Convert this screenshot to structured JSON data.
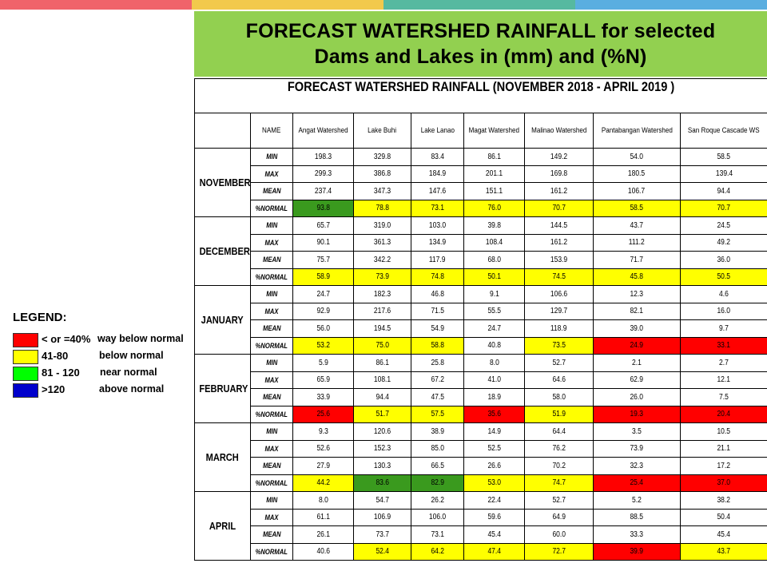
{
  "top_bar_colors": [
    "#f0636a",
    "#f2c94c",
    "#56b9a0",
    "#5aaee0"
  ],
  "banner": {
    "text": "FORECAST WATERSHED RAINFALL  for selected\nDams and Lakes in (mm) and (%N)",
    "color": "#92d050"
  },
  "legend": {
    "title": "LEGEND:",
    "items": [
      {
        "range": "< or =40%",
        "description": "way below normal",
        "color": "#ff0000"
      },
      {
        "range": "41-80",
        "description": "below normal",
        "color": "#ffff00"
      },
      {
        "range": "81 - 120",
        "description": "near normal",
        "color": "#00ff00"
      },
      {
        "range": ">120",
        "description": "above normal",
        "color": "#0000cc"
      }
    ]
  },
  "table": {
    "title": "FORECAST WATERSHED RAINFALL (NOVEMBER 2018 - APRIL 2019 )",
    "name_header": "NAME",
    "columns": [
      "Angat Watershed",
      "Lake Buhi",
      "Lake Lanao",
      "Magat Watershed",
      "Malinao Watershed",
      "Pantabangan Watershed",
      "San Roque Cascade WS"
    ],
    "row_labels": [
      "MIN",
      "MAX",
      "MEAN",
      "%NORMAL"
    ],
    "status_colors": {
      "red": "#ff0000",
      "yellow": "#ffff00",
      "green": "#3a9a1e",
      "white": "#ffffff"
    },
    "months": [
      {
        "name": "NOVEMBER",
        "min": [
          "198.3",
          "329.8",
          "83.4",
          "86.1",
          "149.2",
          "54.0",
          "58.5"
        ],
        "max": [
          "299.3",
          "386.8",
          "184.9",
          "201.1",
          "169.8",
          "180.5",
          "139.4"
        ],
        "mean": [
          "237.4",
          "347.3",
          "147.6",
          "151.1",
          "161.2",
          "106.7",
          "94.4"
        ],
        "normal": [
          "93.8",
          "78.8",
          "73.1",
          "76.0",
          "70.7",
          "58.5",
          "70.7"
        ],
        "normal_colors": [
          "green",
          "yellow",
          "yellow",
          "yellow",
          "yellow",
          "yellow",
          "yellow"
        ]
      },
      {
        "name": "DECEMBER",
        "min": [
          "65.7",
          "319.0",
          "103.0",
          "39.8",
          "144.5",
          "43.7",
          "24.5"
        ],
        "max": [
          "90.1",
          "361.3",
          "134.9",
          "108.4",
          "161.2",
          "111.2",
          "49.2"
        ],
        "mean": [
          "75.7",
          "342.2",
          "117.9",
          "68.0",
          "153.9",
          "71.7",
          "36.0"
        ],
        "normal": [
          "58.9",
          "73.9",
          "74.8",
          "50.1",
          "74.5",
          "45.8",
          "50.5"
        ],
        "normal_colors": [
          "yellow",
          "yellow",
          "yellow",
          "yellow",
          "yellow",
          "yellow",
          "yellow"
        ]
      },
      {
        "name": "JANUARY",
        "min": [
          "24.7",
          "182.3",
          "46.8",
          "9.1",
          "106.6",
          "12.3",
          "4.6"
        ],
        "max": [
          "92.9",
          "217.6",
          "71.5",
          "55.5",
          "129.7",
          "82.1",
          "16.0"
        ],
        "mean": [
          "56.0",
          "194.5",
          "54.9",
          "24.7",
          "118.9",
          "39.0",
          "9.7"
        ],
        "normal": [
          "53.2",
          "75.0",
          "58.8",
          "40.8",
          "73.5",
          "24.9",
          "33.1"
        ],
        "normal_colors": [
          "yellow",
          "yellow",
          "yellow",
          "white",
          "yellow",
          "red",
          "red"
        ]
      },
      {
        "name": "FEBRUARY",
        "min": [
          "5.9",
          "86.1",
          "25.8",
          "8.0",
          "52.7",
          "2.1",
          "2.7"
        ],
        "max": [
          "65.9",
          "108.1",
          "67.2",
          "41.0",
          "64.6",
          "62.9",
          "12.1"
        ],
        "mean": [
          "33.9",
          "94.4",
          "47.5",
          "18.9",
          "58.0",
          "26.0",
          "7.5"
        ],
        "normal": [
          "25.6",
          "51.7",
          "57.5",
          "35.6",
          "51.9",
          "19.3",
          "20.4"
        ],
        "normal_colors": [
          "red",
          "yellow",
          "yellow",
          "red",
          "yellow",
          "red",
          "red"
        ]
      },
      {
        "name": "MARCH",
        "min": [
          "9.3",
          "120.6",
          "38.9",
          "14.9",
          "64.4",
          "3.5",
          "10.5"
        ],
        "max": [
          "52.6",
          "152.3",
          "85.0",
          "52.5",
          "76.2",
          "73.9",
          "21.1"
        ],
        "mean": [
          "27.9",
          "130.3",
          "66.5",
          "26.6",
          "70.2",
          "32.3",
          "17.2"
        ],
        "normal": [
          "44.2",
          "83.6",
          "82.9",
          "53.0",
          "74.7",
          "25.4",
          "37.0"
        ],
        "normal_colors": [
          "yellow",
          "green",
          "green",
          "yellow",
          "yellow",
          "red",
          "red"
        ]
      },
      {
        "name": "APRIL",
        "min": [
          "8.0",
          "54.7",
          "26.2",
          "22.4",
          "52.7",
          "5.2",
          "38.2"
        ],
        "max": [
          "61.1",
          "106.9",
          "106.0",
          "59.6",
          "64.9",
          "88.5",
          "50.4"
        ],
        "mean": [
          "26.1",
          "73.7",
          "73.1",
          "45.4",
          "60.0",
          "33.3",
          "45.4"
        ],
        "normal": [
          "40.6",
          "52.4",
          "64.2",
          "47.4",
          "72.7",
          "39.9",
          "43.7"
        ],
        "normal_colors": [
          "white",
          "yellow",
          "yellow",
          "yellow",
          "yellow",
          "red",
          "yellow"
        ]
      }
    ]
  }
}
